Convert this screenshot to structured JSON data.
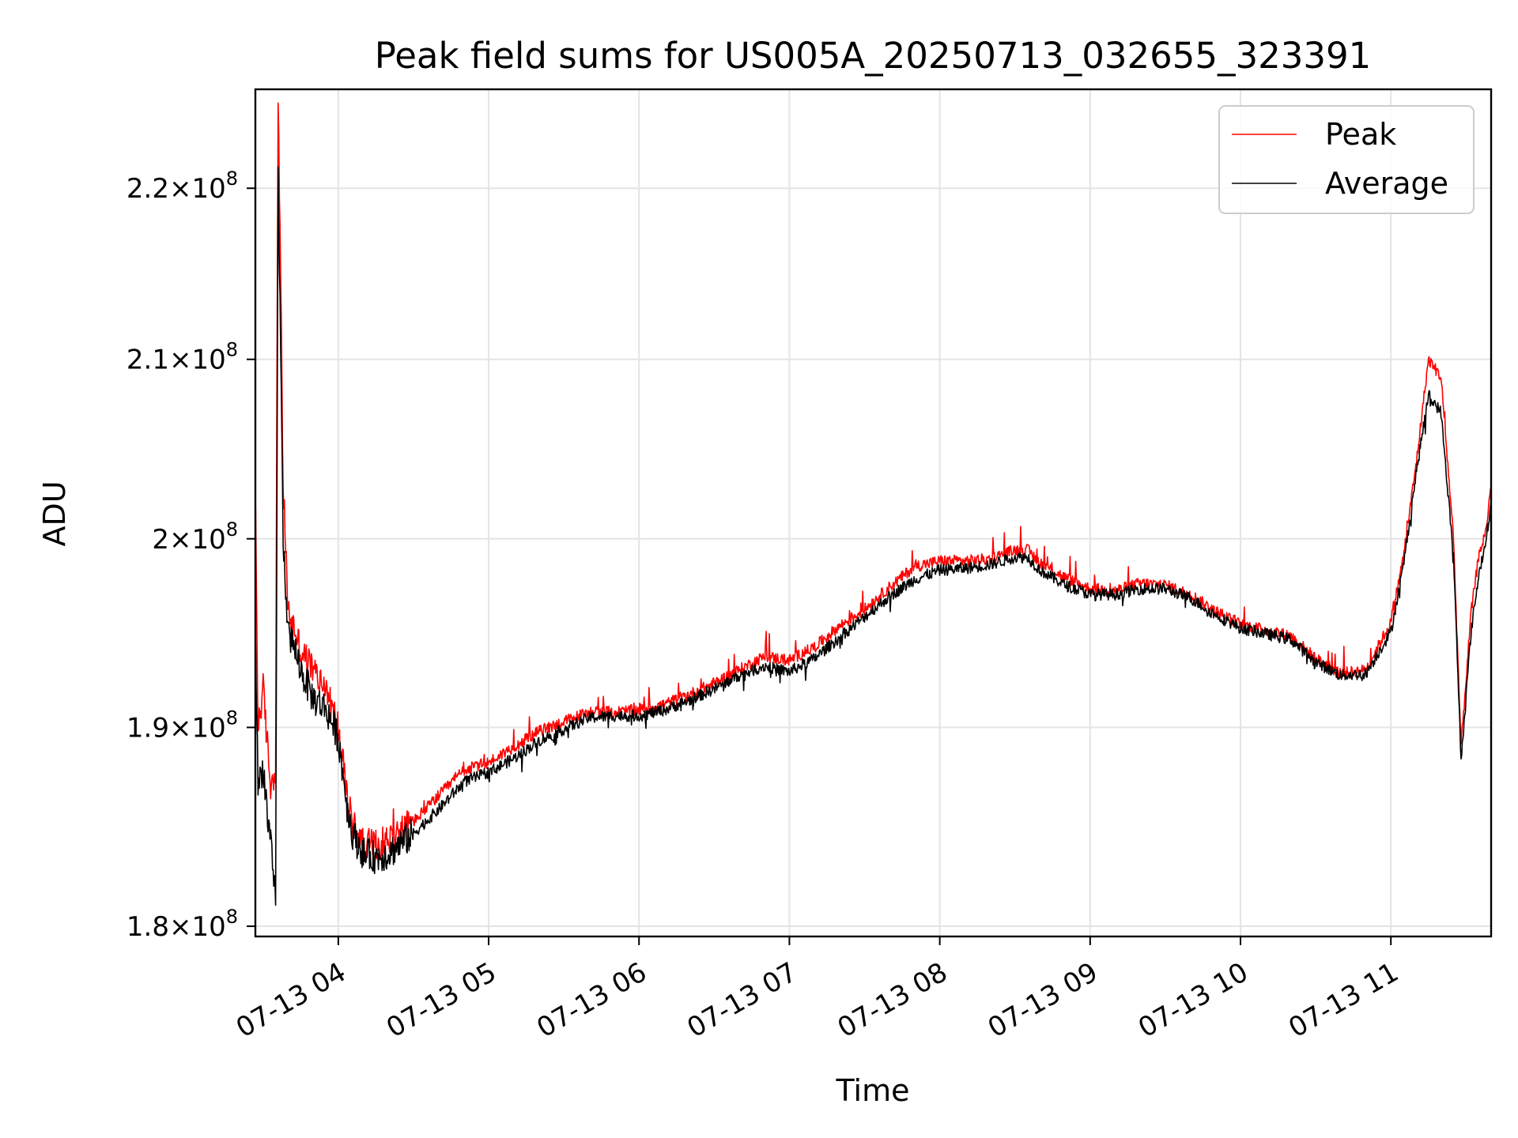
{
  "chart_data": {
    "type": "line",
    "title": "Peak field sums for US005A_20250713_032655_323391",
    "xlabel": "Time",
    "ylabel": "ADU",
    "y_scale": "log",
    "grid": true,
    "legend_placement": "upper right",
    "xlim": [
      "2025-07-13 03:26:55",
      "2025-07-13 11:40:00"
    ],
    "ylim": [
      179500000,
      226000000
    ],
    "x_ticks": [
      "07-13 04",
      "07-13 05",
      "07-13 06",
      "07-13 07",
      "07-13 08",
      "07-13 09",
      "07-13 10",
      "07-13 11"
    ],
    "y_ticks": [
      {
        "value": 180000000,
        "mantissa": "1.8"
      },
      {
        "value": 190000000,
        "mantissa": "1.9"
      },
      {
        "value": 200000000,
        "mantissa": "2"
      },
      {
        "value": 210000000,
        "mantissa": "2.1"
      },
      {
        "value": 220000000,
        "mantissa": "2.2"
      }
    ],
    "y_tick_suffix": "×10",
    "y_tick_exponent": "8",
    "x_label_format": "07-13 HH",
    "series": [
      {
        "name": "Peak",
        "color": "#ff0000",
        "x": [
          "03:27",
          "03:28",
          "03:30",
          "03:33",
          "03:35",
          "03:36",
          "03:38",
          "03:40",
          "03:43",
          "03:45",
          "03:50",
          "03:55",
          "04:00",
          "04:04",
          "04:06",
          "04:10",
          "04:15",
          "04:20",
          "04:30",
          "04:40",
          "04:50",
          "05:00",
          "05:10",
          "05:20",
          "05:30",
          "05:40",
          "05:50",
          "06:00",
          "06:10",
          "06:20",
          "06:30",
          "06:40",
          "06:50",
          "07:00",
          "07:10",
          "07:20",
          "07:30",
          "07:40",
          "07:50",
          "08:00",
          "08:10",
          "08:20",
          "08:30",
          "08:35",
          "08:40",
          "08:50",
          "09:00",
          "09:10",
          "09:20",
          "09:30",
          "09:40",
          "09:50",
          "10:00",
          "10:10",
          "10:20",
          "10:30",
          "10:40",
          "10:50",
          "11:00",
          "11:05",
          "11:10",
          "11:15",
          "11:20",
          "11:25",
          "11:28",
          "11:32",
          "11:35",
          "11:38",
          "11:40"
        ],
        "y": [
          201000000,
          190000000,
          192000000,
          187000000,
          188000000,
          226000000,
          203000000,
          196000000,
          195000000,
          194000000,
          193000000,
          192000000,
          190000000,
          186000000,
          185000000,
          184000000,
          184000000,
          184300000,
          185200000,
          186500000,
          187800000,
          188200000,
          189000000,
          189800000,
          190300000,
          190800000,
          190800000,
          190900000,
          191200000,
          191700000,
          192300000,
          193000000,
          193700000,
          193500000,
          194200000,
          195300000,
          196200000,
          197400000,
          198500000,
          198800000,
          198800000,
          198900000,
          199400000,
          199400000,
          198700000,
          197900000,
          197300000,
          197200000,
          197600000,
          197500000,
          197000000,
          196100000,
          195400000,
          195100000,
          194800000,
          193600000,
          192800000,
          193000000,
          195500000,
          199000000,
          204000000,
          210000000,
          209000000,
          200000000,
          189000000,
          196000000,
          199000000,
          200500000,
          203000000
        ]
      },
      {
        "name": "Average",
        "color": "#000000",
        "x": [
          "03:27",
          "03:28",
          "03:30",
          "03:33",
          "03:35",
          "03:36",
          "03:38",
          "03:40",
          "03:43",
          "03:45",
          "03:50",
          "03:55",
          "04:00",
          "04:04",
          "04:06",
          "04:10",
          "04:15",
          "04:20",
          "04:30",
          "04:40",
          "04:50",
          "05:00",
          "05:10",
          "05:20",
          "05:30",
          "05:40",
          "05:50",
          "06:00",
          "06:10",
          "06:20",
          "06:30",
          "06:40",
          "06:50",
          "07:00",
          "07:10",
          "07:20",
          "07:30",
          "07:40",
          "07:50",
          "08:00",
          "08:10",
          "08:20",
          "08:30",
          "08:35",
          "08:40",
          "08:50",
          "09:00",
          "09:10",
          "09:20",
          "09:30",
          "09:40",
          "09:50",
          "10:00",
          "10:10",
          "10:20",
          "10:30",
          "10:40",
          "10:50",
          "11:00",
          "11:05",
          "11:10",
          "11:15",
          "11:20",
          "11:25",
          "11:28",
          "11:32",
          "11:35",
          "11:38",
          "11:40"
        ],
        "y": [
          194000000,
          187000000,
          188000000,
          184000000,
          181000000,
          221000000,
          200000000,
          195000000,
          194000000,
          193000000,
          191500000,
          191000000,
          189500000,
          185500000,
          184500000,
          183600000,
          183400000,
          183600000,
          184600000,
          185800000,
          187200000,
          187700000,
          188400000,
          189300000,
          189900000,
          190500000,
          190600000,
          190600000,
          190900000,
          191400000,
          192000000,
          192700000,
          193200000,
          192900000,
          193600000,
          194700000,
          195800000,
          196900000,
          197800000,
          198300000,
          198400000,
          198600000,
          199000000,
          199000000,
          198300000,
          197500000,
          197000000,
          197000000,
          197300000,
          197300000,
          196800000,
          195900000,
          195200000,
          194900000,
          194600000,
          193400000,
          192700000,
          192800000,
          195000000,
          198500000,
          203500000,
          208000000,
          207000000,
          199000000,
          188300000,
          195000000,
          198000000,
          200000000,
          202000000
        ]
      }
    ]
  }
}
